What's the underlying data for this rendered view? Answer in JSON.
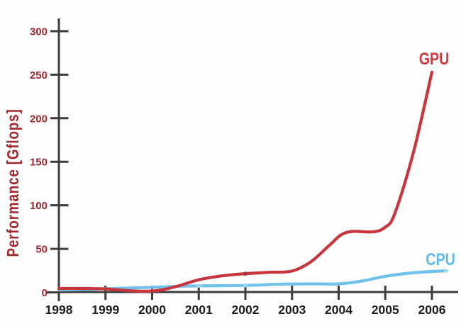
{
  "figure": {
    "background": "#fdfdfd"
  },
  "chart_data": {
    "type": "line",
    "title": "",
    "xlabel": "",
    "ylabel": "Performance [Gflops]",
    "xlim": [
      1998,
      2006.55
    ],
    "ylim": [
      0,
      300
    ],
    "grid": false,
    "legend_position": "inline labels at right end of each line",
    "x_tick_labels": [
      "1998",
      "1999",
      "2000",
      "2001",
      "2002",
      "2003",
      "2004",
      "2005",
      "2006"
    ],
    "x_tick_values": [
      1998,
      1999,
      2000,
      2001,
      2002,
      2003,
      2004,
      2005,
      2006
    ],
    "y_tick_labels": [
      "0",
      "50",
      "100",
      "150",
      "200",
      "250",
      "300"
    ],
    "y_tick_values": [
      0,
      50,
      100,
      150,
      200,
      250,
      300
    ],
    "colors": {
      "axis": "#3e3c3a",
      "x_tick_label": "#1d1d1d",
      "y_tick_label": "#a1282d",
      "ylabel": "#a1282d"
    },
    "series": [
      {
        "name": "GPU",
        "color": "#c9353d",
        "label_color": "#d03a40",
        "points": [
          [
            1998,
            4.5
          ],
          [
            1998.6,
            4.5
          ],
          [
            1999,
            4
          ],
          [
            1999.45,
            2.2
          ],
          [
            1999.8,
            1.3
          ],
          [
            2000.1,
            2
          ],
          [
            2000.5,
            6.5
          ],
          [
            2001,
            14.5
          ],
          [
            2001.5,
            19
          ],
          [
            2002,
            21.5
          ],
          [
            2002.5,
            23
          ],
          [
            2003,
            24.5
          ],
          [
            2003.4,
            35
          ],
          [
            2003.8,
            54
          ],
          [
            2004.05,
            66
          ],
          [
            2004.3,
            70
          ],
          [
            2004.75,
            69.5
          ],
          [
            2005,
            75
          ],
          [
            2005.2,
            90
          ],
          [
            2005.6,
            160
          ],
          [
            2006,
            253
          ]
        ],
        "markers": [
          [
            2002,
            21.5
          ]
        ],
        "marker_color": "#9c2f44"
      },
      {
        "name": "CPU",
        "color": "#70c2ec",
        "label_color": "#5fb9e9",
        "points": [
          [
            1998,
            2.8
          ],
          [
            1998.7,
            3.5
          ],
          [
            1999,
            4.2
          ],
          [
            2000,
            5.8
          ],
          [
            2000.6,
            7
          ],
          [
            2001,
            7.5
          ],
          [
            2002,
            8
          ],
          [
            2002.8,
            9.5
          ],
          [
            2003.5,
            9.8
          ],
          [
            2004,
            9.8
          ],
          [
            2004.5,
            13
          ],
          [
            2005,
            18.5
          ],
          [
            2005.5,
            22
          ],
          [
            2006,
            24
          ],
          [
            2006.3,
            24.8
          ]
        ],
        "markers": [
          [
            2001,
            7.5
          ],
          [
            2002,
            8
          ],
          [
            2006.3,
            24.8
          ]
        ],
        "marker_color": "#9ed8f5"
      }
    ]
  }
}
